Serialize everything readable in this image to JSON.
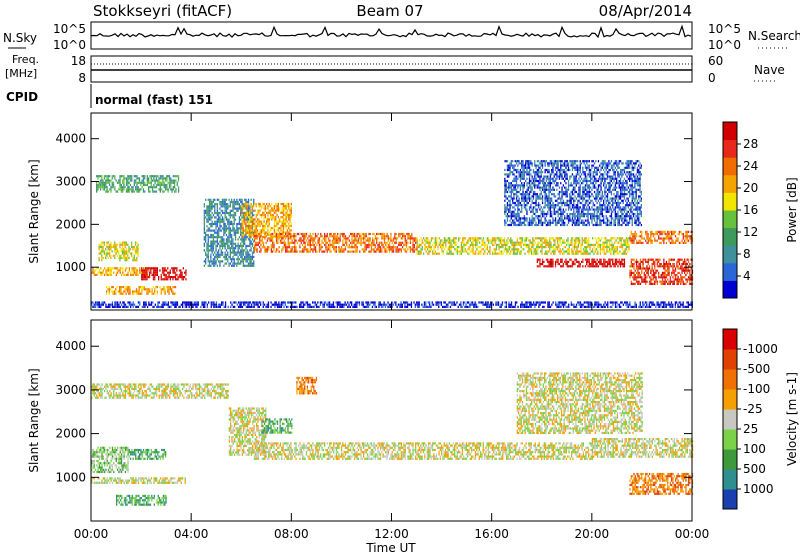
{
  "header": {
    "station": "Stokkseyri (fitACF)",
    "beam": "Beam 07",
    "date": "08/Apr/2014"
  },
  "nsky": {
    "label": "N.Sky",
    "top": "10^5",
    "bottom": "10^0"
  },
  "nsearch": {
    "label": "N.Search",
    "top": "10^5",
    "bottom": "10^0"
  },
  "freq": {
    "label_line1": "Freq.",
    "label_line2": "[MHz]",
    "top": "18",
    "bottom": "8"
  },
  "nave": {
    "label": "Nave",
    "top": "60",
    "bottom": "0"
  },
  "cpid": {
    "label": "CPID",
    "text": "normal (fast) 151"
  },
  "chart_data": [
    {
      "type": "heatmap",
      "title": "Power",
      "xlabel": "Time UT",
      "ylabel": "Slant Range [km]",
      "x_ticks": [
        "00:00",
        "04:00",
        "08:00",
        "12:00",
        "16:00",
        "20:00",
        "00:00"
      ],
      "y_ticks": [
        1000,
        2000,
        3000,
        4000
      ],
      "ylim": [
        0,
        4600
      ],
      "colorbar_label": "Power [dB]",
      "colorbar_ticks": [
        "4",
        "8",
        "12",
        "16",
        "20",
        "24",
        "28"
      ],
      "colorbar_colors": [
        "#0000d0",
        "#2b66d8",
        "#3f8f9c",
        "#3e9a5a",
        "#66c23c",
        "#f2e600",
        "#f5a300",
        "#f06d00",
        "#e8281a",
        "#d10000"
      ],
      "bands": [
        {
          "x": [
            0.2,
            3.5
          ],
          "y": [
            2750,
            3150
          ],
          "level": 3
        },
        {
          "x": [
            0.3,
            1.9
          ],
          "y": [
            1150,
            1600
          ],
          "level": 5
        },
        {
          "x": [
            0.0,
            2.3
          ],
          "y": [
            820,
            1000
          ],
          "level": 6
        },
        {
          "x": [
            2.0,
            3.8
          ],
          "y": [
            700,
            1000
          ],
          "level": 9
        },
        {
          "x": [
            0.6,
            3.4
          ],
          "y": [
            380,
            560
          ],
          "level": 6
        },
        {
          "x": [
            4.5,
            6.5
          ],
          "y": [
            1050,
            2600
          ],
          "level": 2
        },
        {
          "x": [
            6.0,
            8.0
          ],
          "y": [
            1700,
            2500
          ],
          "level": 6
        },
        {
          "x": [
            6.5,
            13.0
          ],
          "y": [
            1350,
            1800
          ],
          "level": 7
        },
        {
          "x": [
            13.0,
            21.5
          ],
          "y": [
            1300,
            1700
          ],
          "level": 5
        },
        {
          "x": [
            17.8,
            21.3
          ],
          "y": [
            1000,
            1200
          ],
          "level": 9
        },
        {
          "x": [
            21.5,
            24.0
          ],
          "y": [
            600,
            1200
          ],
          "level": 8
        },
        {
          "x": [
            21.5,
            24.0
          ],
          "y": [
            1550,
            1850
          ],
          "level": 7
        },
        {
          "x": [
            16.5,
            22.0
          ],
          "y": [
            2000,
            3500
          ],
          "level": 1
        },
        {
          "x": [
            0.0,
            24.0
          ],
          "y": [
            80,
            200
          ],
          "level": 0
        }
      ]
    },
    {
      "type": "heatmap",
      "title": "Velocity",
      "xlabel": "Time UT",
      "ylabel": "Slant Range [km]",
      "x_ticks": [
        "00:00",
        "04:00",
        "08:00",
        "12:00",
        "16:00",
        "20:00",
        "00:00"
      ],
      "y_ticks": [
        1000,
        2000,
        3000,
        4000
      ],
      "ylim": [
        0,
        4600
      ],
      "colorbar_label": "Velocity [m s-1]",
      "colorbar_ticks": [
        "1000",
        "500",
        "100",
        "25",
        "-25",
        "-100",
        "-500",
        "-1000"
      ],
      "colorbar_colors": [
        "#1a3fb0",
        "#2f8f8f",
        "#3c9a3c",
        "#7ad24a",
        "#c8c8c0",
        "#f5a000",
        "#f07000",
        "#e04000",
        "#d80000"
      ],
      "bands": [
        {
          "x": [
            0.0,
            5.5
          ],
          "y": [
            2800,
            3150
          ],
          "level": 4
        },
        {
          "x": [
            5.5,
            7.0
          ],
          "y": [
            1500,
            2600
          ],
          "level": 4
        },
        {
          "x": [
            6.5,
            20.0
          ],
          "y": [
            1400,
            1800
          ],
          "level": 4
        },
        {
          "x": [
            20.0,
            24.0
          ],
          "y": [
            1450,
            1900
          ],
          "level": 4
        },
        {
          "x": [
            0.0,
            1.5
          ],
          "y": [
            1100,
            1700
          ],
          "level": 3
        },
        {
          "x": [
            1.5,
            3.0
          ],
          "y": [
            1400,
            1650
          ],
          "level": 2
        },
        {
          "x": [
            0.0,
            3.8
          ],
          "y": [
            850,
            1000
          ],
          "level": 4
        },
        {
          "x": [
            1.0,
            3.0
          ],
          "y": [
            350,
            600
          ],
          "level": 2
        },
        {
          "x": [
            6.8,
            8.0
          ],
          "y": [
            2000,
            2350
          ],
          "level": 2
        },
        {
          "x": [
            8.2,
            9.0
          ],
          "y": [
            2900,
            3300
          ],
          "level": 6
        },
        {
          "x": [
            21.5,
            24.0
          ],
          "y": [
            600,
            1100
          ],
          "level": 6
        },
        {
          "x": [
            17.0,
            22.0
          ],
          "y": [
            2000,
            3400
          ],
          "level": 4
        }
      ]
    }
  ]
}
